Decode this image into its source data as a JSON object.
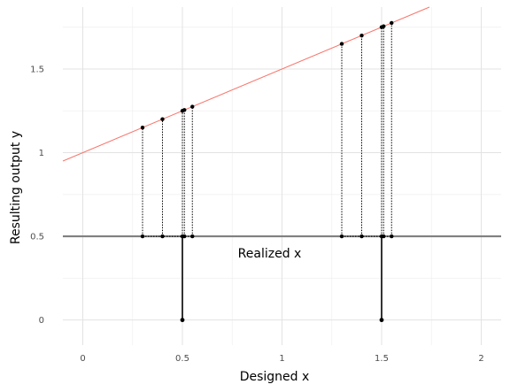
{
  "chart_data": {
    "type": "scatter",
    "title": "",
    "xlabel": "Designed x",
    "ylabel": "Resulting output y",
    "xlim": [
      -0.1,
      2.1
    ],
    "ylim": [
      -0.15,
      1.87
    ],
    "x_ticks": [
      {
        "value": 0,
        "label": "0"
      },
      {
        "value": 0.5,
        "label": "0.5"
      },
      {
        "value": 1,
        "label": "1"
      },
      {
        "value": 1.5,
        "label": "1.5"
      },
      {
        "value": 2,
        "label": "2"
      }
    ],
    "y_ticks": [
      {
        "value": 0,
        "label": "0"
      },
      {
        "value": 0.5,
        "label": "0.5"
      },
      {
        "value": 1,
        "label": "1"
      },
      {
        "value": 1.5,
        "label": "1.5"
      }
    ],
    "grid": true,
    "line": {
      "intercept": 1.0,
      "slope": 0.5,
      "color": "#f8766d"
    },
    "realized_line": {
      "y": 0.5,
      "color": "#808080"
    },
    "annotation": {
      "text": "Realized x",
      "x": 1.0,
      "y": 0.4
    },
    "groups": [
      {
        "design_x": 0.5,
        "realized_x": [
          0.3,
          0.4,
          0.5,
          0.51,
          0.55
        ]
      },
      {
        "design_x": 1.5,
        "realized_x": [
          1.3,
          1.4,
          1.5,
          1.51,
          1.55
        ]
      }
    ],
    "point_color": "#000000"
  }
}
